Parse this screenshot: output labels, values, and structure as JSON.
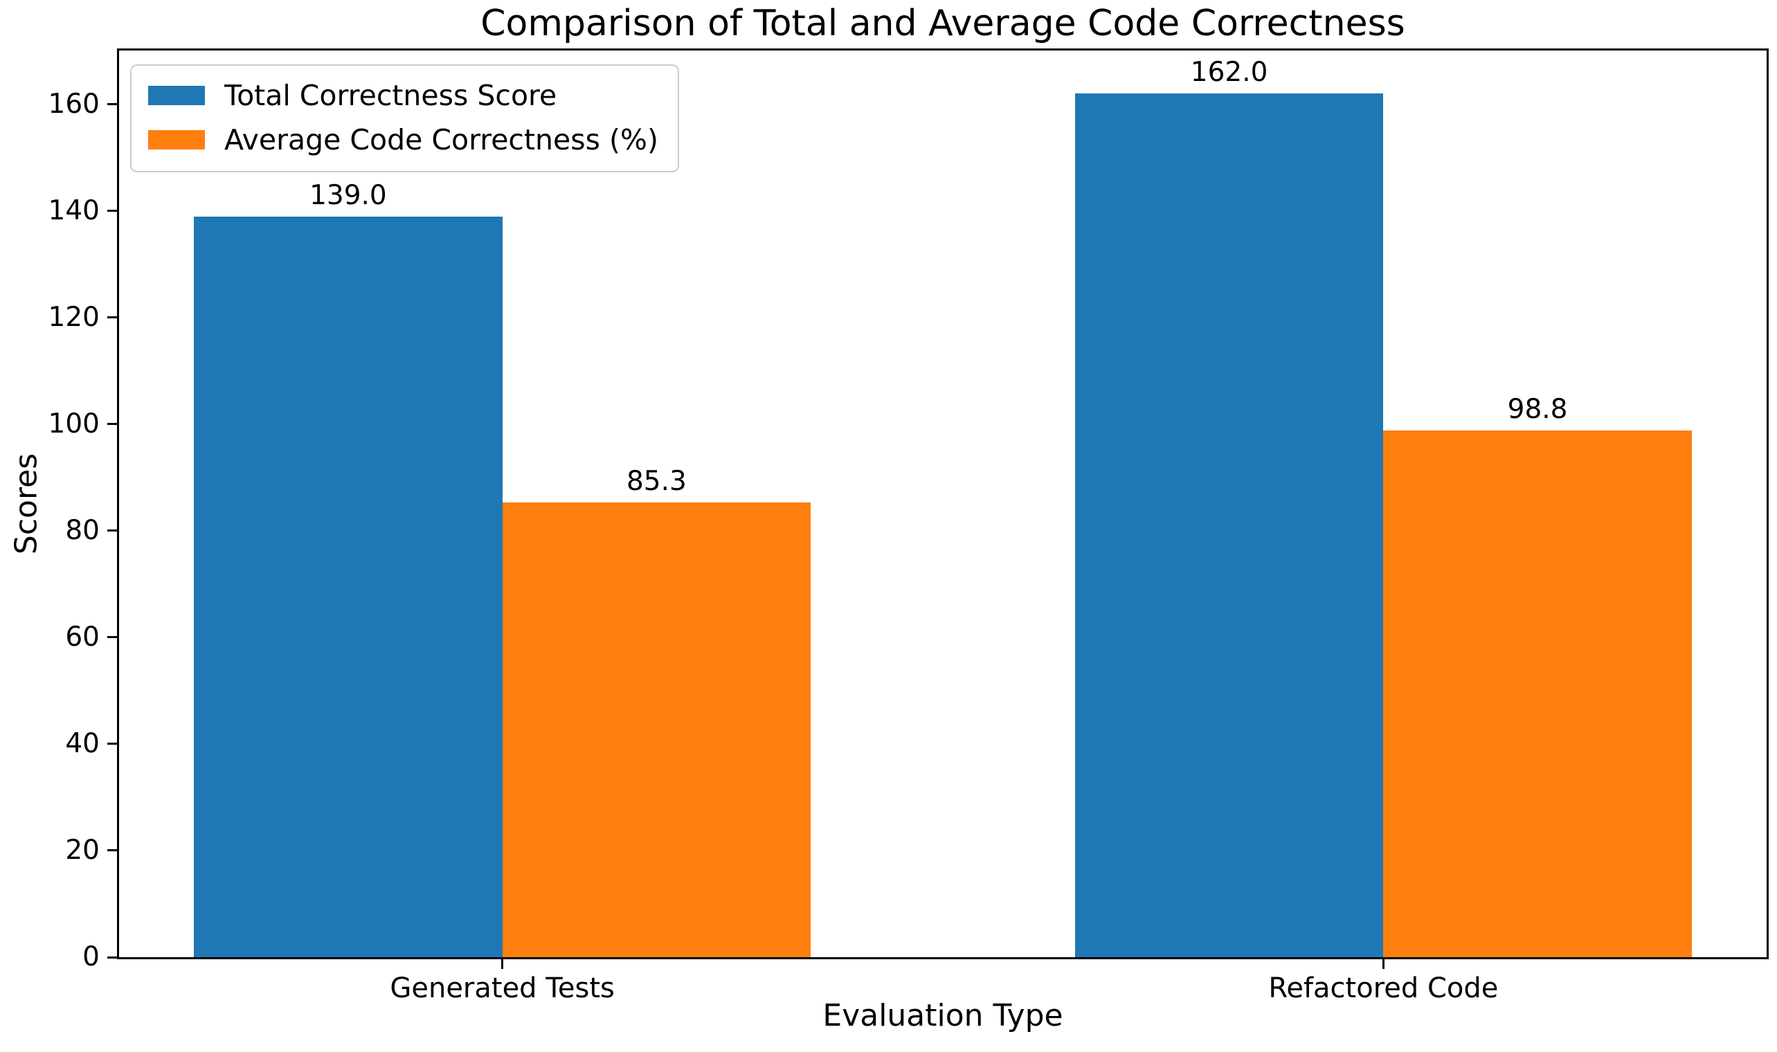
{
  "chart_data": {
    "type": "bar",
    "title": "Comparison of Total and Average Code Correctness",
    "xlabel": "Evaluation Type",
    "ylabel": "Scores",
    "categories": [
      "Generated Tests",
      "Refactored Code"
    ],
    "series": [
      {
        "name": "Total Correctness Score",
        "color": "#1f77b4",
        "values": [
          139.0,
          162.0
        ],
        "value_labels": [
          "139.0",
          "162.0"
        ]
      },
      {
        "name": "Average Code Correctness (%)",
        "color": "#ff7f0e",
        "values": [
          85.3,
          98.8
        ],
        "value_labels": [
          "85.3",
          "98.8"
        ]
      }
    ],
    "yticks": [
      0,
      20,
      40,
      60,
      80,
      100,
      120,
      140,
      160
    ],
    "ylim": [
      0,
      170.1
    ],
    "xlim": [
      -0.435,
      1.435
    ],
    "bar_width": 0.35,
    "group_offsets": [
      -0.175,
      0.175
    ],
    "legend_position": "upper-left",
    "grid": false,
    "background_color": "#ffffff",
    "axis_color": "#000000",
    "text_color": "#000000",
    "legend_border_color": "#cccccc"
  }
}
